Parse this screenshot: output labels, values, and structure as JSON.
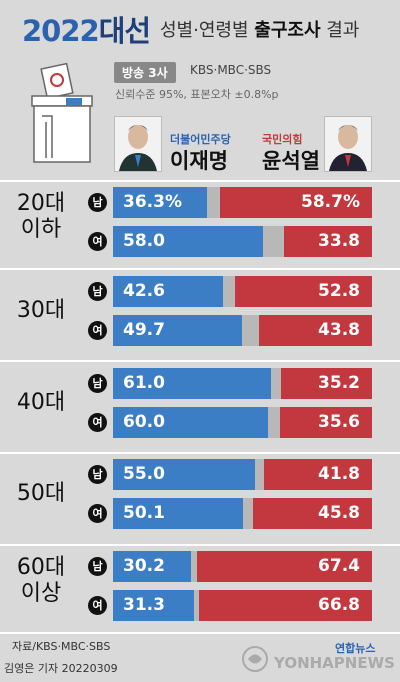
{
  "header": {
    "title_year": "2022",
    "title_word": "대선",
    "subtitle_plain": "성별·연령별",
    "subtitle_bold": "출구조사",
    "subtitle_end": "결과",
    "broadcast_label": "방송 3사",
    "networks": "KBS·MBC·SBS",
    "confidence": "신뢰수준 95%, 표본오차 ±0.8%p"
  },
  "candidates": {
    "lee": {
      "party": "더불어민주당",
      "name": "이재명",
      "color": "#3b7ec5"
    },
    "yoon": {
      "party": "국민의힘",
      "name": "윤석열",
      "color": "#c3383e"
    }
  },
  "footer": {
    "source": "자료/KBS·MBC·SBS",
    "credit": "김영은 기자  20220309",
    "logo_top": "연합뉴스",
    "logo_main": "YONHAPNEWS"
  },
  "chart_data": {
    "type": "bar",
    "series": [
      {
        "name": "이재명",
        "values": [
          36.3,
          58.0,
          42.6,
          49.7,
          61.0,
          60.0,
          55.0,
          50.1,
          30.2,
          31.3
        ]
      },
      {
        "name": "윤석열",
        "values": [
          58.7,
          33.8,
          52.8,
          43.8,
          35.2,
          35.6,
          41.8,
          45.8,
          67.4,
          66.8
        ]
      }
    ],
    "groups": [
      {
        "label_line1": "20대",
        "label_line2": "이하",
        "rows": [
          {
            "sex": "남",
            "lee": "36.3%",
            "yoon": "58.7%",
            "lee_v": 36.3,
            "yoon_v": 58.7
          },
          {
            "sex": "여",
            "lee": "58.0",
            "yoon": "33.8",
            "lee_v": 58.0,
            "yoon_v": 33.8
          }
        ]
      },
      {
        "label_line1": "30대",
        "label_line2": "",
        "rows": [
          {
            "sex": "남",
            "lee": "42.6",
            "yoon": "52.8",
            "lee_v": 42.6,
            "yoon_v": 52.8
          },
          {
            "sex": "여",
            "lee": "49.7",
            "yoon": "43.8",
            "lee_v": 49.7,
            "yoon_v": 43.8
          }
        ]
      },
      {
        "label_line1": "40대",
        "label_line2": "",
        "rows": [
          {
            "sex": "남",
            "lee": "61.0",
            "yoon": "35.2",
            "lee_v": 61.0,
            "yoon_v": 35.2
          },
          {
            "sex": "여",
            "lee": "60.0",
            "yoon": "35.6",
            "lee_v": 60.0,
            "yoon_v": 35.6
          }
        ]
      },
      {
        "label_line1": "50대",
        "label_line2": "",
        "rows": [
          {
            "sex": "남",
            "lee": "55.0",
            "yoon": "41.8",
            "lee_v": 55.0,
            "yoon_v": 41.8
          },
          {
            "sex": "여",
            "lee": "50.1",
            "yoon": "45.8",
            "lee_v": 50.1,
            "yoon_v": 45.8
          }
        ]
      },
      {
        "label_line1": "60대",
        "label_line2": "이상",
        "rows": [
          {
            "sex": "남",
            "lee": "30.2",
            "yoon": "67.4",
            "lee_v": 30.2,
            "yoon_v": 67.4
          },
          {
            "sex": "여",
            "lee": "31.3",
            "yoon": "66.8",
            "lee_v": 31.3,
            "yoon_v": 66.8
          }
        ]
      }
    ],
    "xlim": [
      0,
      100
    ]
  }
}
